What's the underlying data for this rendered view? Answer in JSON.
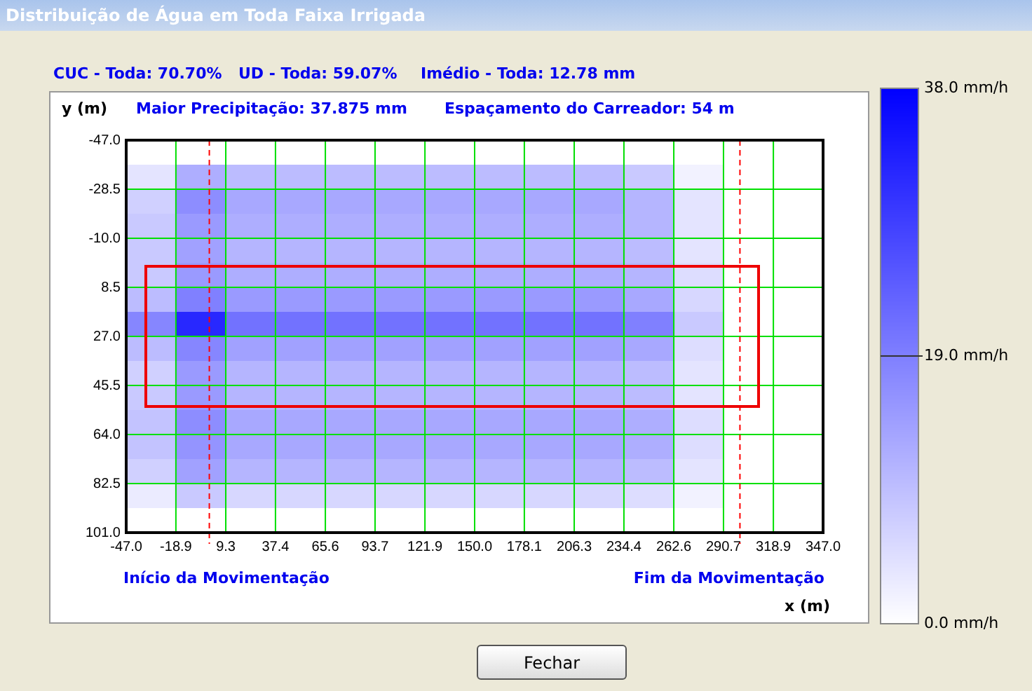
{
  "chart_data": {
    "type": "heatmap",
    "title": "Distribuição de Água em Toda Faixa Irrigada",
    "xlabel": "x (m)",
    "ylabel": "y (m)",
    "annotations": [
      "CUC - Toda: 70.70%",
      "UD - Toda: 59.07%",
      "Imédio - Toda: 12.78 mm",
      "Maior Precipitação: 37.875 mm",
      "Espaçamento do Carreador: 54 m",
      "Início da Movimentação",
      "Fim da Movimentação",
      "Fechar"
    ],
    "color": "#0000ff",
    "xlim": [
      -47,
      347
    ],
    "xticks": [
      {
        "value": -47,
        "label": "-47.0"
      },
      {
        "value": -18.9,
        "label": "-18.9"
      },
      {
        "value": 9.3,
        "label": "9.3"
      },
      {
        "value": 37.4,
        "label": "37.4"
      },
      {
        "value": 65.6,
        "label": "65.6"
      },
      {
        "value": 93.7,
        "label": "93.7"
      },
      {
        "value": 121.9,
        "label": "121.9"
      },
      {
        "value": 150,
        "label": "150.0"
      },
      {
        "value": 178.1,
        "label": "178.1"
      },
      {
        "value": 206.3,
        "label": "206.3"
      },
      {
        "value": 234.4,
        "label": "234.4"
      },
      {
        "value": 262.6,
        "label": "262.6"
      },
      {
        "value": 290.7,
        "label": "290.7"
      },
      {
        "value": 318.9,
        "label": "318.9"
      },
      {
        "value": 347,
        "label": "347.0"
      }
    ],
    "ylim": [
      101,
      -47
    ],
    "yticks": [
      {
        "value": -47,
        "label": "-47.0"
      },
      {
        "value": -28.5,
        "label": "-28.5"
      },
      {
        "value": -10,
        "label": "-10.0"
      },
      {
        "value": 8.5,
        "label": "8.5"
      },
      {
        "value": 27,
        "label": "27.0"
      },
      {
        "value": 45.5,
        "label": "45.5"
      },
      {
        "value": 64,
        "label": "64.0"
      },
      {
        "value": 82.5,
        "label": "82.5"
      },
      {
        "value": 101,
        "label": "101.0"
      }
    ],
    "clim": [
      0,
      38
    ],
    "cticks": [
      {
        "value": 38,
        "label": "38.0 mm/h"
      },
      {
        "value": 19,
        "label": "19.0 mm/h"
      },
      {
        "value": 0,
        "label": "0.0 mm/h"
      }
    ],
    "grid": true,
    "ref_lines": [
      {
        "axis": "x",
        "value": 0,
        "color": "#ff0000",
        "line_style": "dashed"
      },
      {
        "axis": "x",
        "value": 300,
        "color": "#ff0000",
        "line_style": "dashed"
      }
    ],
    "cells": [
      [
        0,
        0,
        0,
        0,
        0,
        0,
        0,
        0,
        0,
        0,
        0,
        0,
        0,
        0
      ],
      [
        4,
        12,
        10,
        10,
        10,
        10,
        10,
        10,
        10,
        10,
        8,
        2,
        0,
        0
      ],
      [
        7,
        17,
        13,
        13,
        13,
        13,
        13,
        13,
        13,
        13,
        11,
        4,
        0,
        0
      ],
      [
        8,
        15,
        12,
        12,
        12,
        12,
        12,
        12,
        12,
        12,
        11,
        4,
        0,
        0
      ],
      [
        8,
        14,
        11,
        11,
        11,
        11,
        11,
        11,
        11,
        11,
        10,
        4,
        0,
        0
      ],
      [
        8,
        15,
        12,
        12,
        12,
        12,
        12,
        12,
        12,
        12,
        11,
        5,
        0,
        0
      ],
      [
        10,
        19,
        15,
        15,
        15,
        15,
        15,
        15,
        15,
        15,
        13,
        6,
        0,
        0
      ],
      [
        18,
        32,
        21,
        21,
        21,
        21,
        21,
        21,
        21,
        21,
        19,
        8,
        0,
        0
      ],
      [
        10,
        18,
        14,
        14,
        14,
        14,
        14,
        14,
        14,
        14,
        13,
        5,
        0,
        0
      ],
      [
        7,
        15,
        11,
        11,
        11,
        11,
        11,
        11,
        11,
        11,
        10,
        4,
        0,
        0
      ],
      [
        8,
        15,
        11,
        11,
        11,
        11,
        11,
        11,
        11,
        11,
        10,
        4,
        0,
        0
      ],
      [
        9,
        17,
        13,
        13,
        13,
        13,
        13,
        13,
        13,
        13,
        12,
        5,
        0,
        0
      ],
      [
        9,
        16,
        13,
        13,
        13,
        13,
        13,
        13,
        13,
        13,
        12,
        5,
        0,
        0
      ],
      [
        7,
        14,
        11,
        11,
        11,
        11,
        11,
        11,
        11,
        11,
        10,
        4,
        0,
        0
      ],
      [
        3,
        8,
        6,
        6,
        6,
        6,
        6,
        6,
        6,
        6,
        5,
        2,
        0,
        0
      ],
      [
        0,
        0,
        0,
        0,
        0,
        0,
        0,
        0,
        0,
        0,
        0,
        0,
        0,
        0
      ]
    ]
  }
}
